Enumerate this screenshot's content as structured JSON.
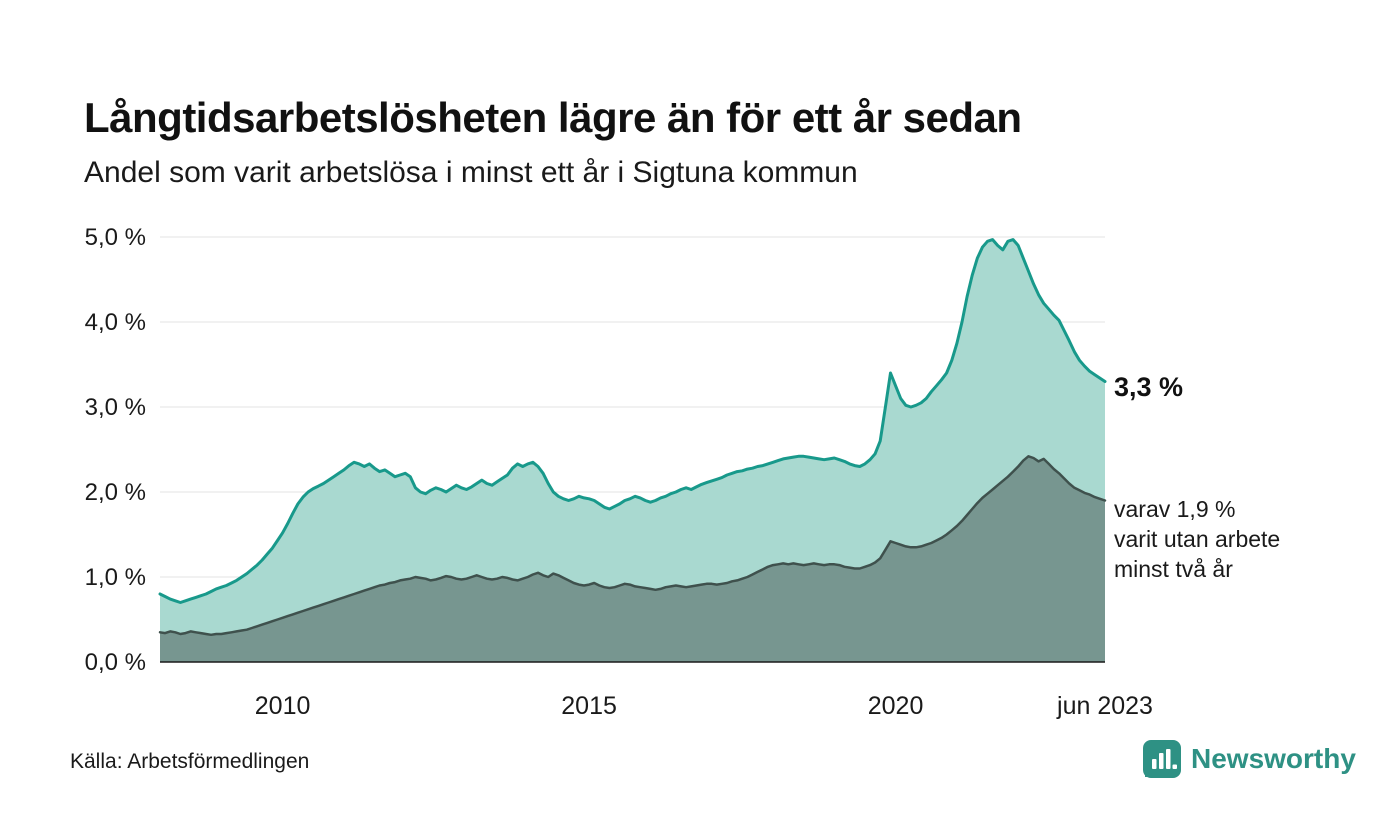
{
  "header": {
    "title": "Långtidsarbetslösheten lägre än för ett år sedan",
    "subtitle": "Andel som varit arbetslösa i minst ett år i Sigtuna kommun"
  },
  "annotations": {
    "latest_value": "3,3 %",
    "secondary": "varav 1,9 %\nvarit utan arbete\nminst två år"
  },
  "footer": {
    "source": "Källa: Arbetsförmedlingen",
    "brand": "Newsworthy"
  },
  "colors": {
    "line_primary": "#18998b",
    "fill_primary": "#a9d9d0",
    "line_secondary": "#3f514d",
    "fill_secondary": "#779690",
    "grid": "#e3e3e3",
    "axis": "#1a1a1a",
    "text": "#1a1a1a",
    "brand_teal": "#2e9184"
  },
  "chart_data": {
    "type": "area",
    "title": "Långtidsarbetslösheten lägre än för ett år sedan",
    "subtitle": "Andel som varit arbetslösa i minst ett år i Sigtuna kommun",
    "x_start": "2008-01",
    "x_interval": "month",
    "ylim": [
      0,
      5
    ],
    "grid": true,
    "legend_position": "none",
    "yticks": [
      {
        "value": 0,
        "label": "0,0 %"
      },
      {
        "value": 1,
        "label": "1,0 %"
      },
      {
        "value": 2,
        "label": "2,0 %"
      },
      {
        "value": 3,
        "label": "3,0 %"
      },
      {
        "value": 4,
        "label": "4,0 %"
      },
      {
        "value": 5,
        "label": "5,0 %"
      }
    ],
    "xticks": [
      {
        "date": "2010-01",
        "label": "2010"
      },
      {
        "date": "2015-01",
        "label": "2015"
      },
      {
        "date": "2020-01",
        "label": "2020"
      },
      {
        "date": "2023-06",
        "label": "jun 2023"
      }
    ],
    "latest": {
      "minst_ett_ar": 3.3,
      "minst_tva_ar": 1.9
    },
    "series": [
      {
        "name": "Arbetslösa minst ett år",
        "color": "#18998b",
        "fill": "#a9d9d0",
        "values": [
          0.8,
          0.77,
          0.74,
          0.72,
          0.7,
          0.72,
          0.74,
          0.76,
          0.78,
          0.8,
          0.83,
          0.86,
          0.88,
          0.9,
          0.93,
          0.96,
          1.0,
          1.04,
          1.09,
          1.14,
          1.2,
          1.27,
          1.34,
          1.43,
          1.52,
          1.63,
          1.75,
          1.86,
          1.94,
          2.0,
          2.04,
          2.07,
          2.1,
          2.14,
          2.18,
          2.22,
          2.26,
          2.31,
          2.35,
          2.33,
          2.3,
          2.33,
          2.28,
          2.24,
          2.26,
          2.22,
          2.18,
          2.2,
          2.22,
          2.18,
          2.05,
          2.0,
          1.98,
          2.02,
          2.05,
          2.03,
          2.0,
          2.04,
          2.08,
          2.05,
          2.03,
          2.06,
          2.1,
          2.14,
          2.1,
          2.08,
          2.12,
          2.16,
          2.2,
          2.28,
          2.33,
          2.3,
          2.33,
          2.35,
          2.3,
          2.22,
          2.1,
          2.0,
          1.95,
          1.92,
          1.9,
          1.92,
          1.95,
          1.93,
          1.92,
          1.9,
          1.86,
          1.82,
          1.8,
          1.83,
          1.86,
          1.9,
          1.92,
          1.95,
          1.93,
          1.9,
          1.88,
          1.9,
          1.93,
          1.95,
          1.98,
          2.0,
          2.03,
          2.05,
          2.03,
          2.06,
          2.09,
          2.11,
          2.13,
          2.15,
          2.17,
          2.2,
          2.22,
          2.24,
          2.25,
          2.27,
          2.28,
          2.3,
          2.31,
          2.33,
          2.35,
          2.37,
          2.39,
          2.4,
          2.41,
          2.42,
          2.42,
          2.41,
          2.4,
          2.39,
          2.38,
          2.39,
          2.4,
          2.38,
          2.36,
          2.33,
          2.31,
          2.3,
          2.33,
          2.38,
          2.45,
          2.6,
          3.0,
          3.4,
          3.25,
          3.1,
          3.02,
          3.0,
          3.02,
          3.05,
          3.1,
          3.18,
          3.25,
          3.32,
          3.4,
          3.55,
          3.75,
          4.0,
          4.3,
          4.55,
          4.75,
          4.88,
          4.95,
          4.97,
          4.9,
          4.85,
          4.95,
          4.97,
          4.9,
          4.75,
          4.6,
          4.45,
          4.32,
          4.22,
          4.15,
          4.08,
          4.02,
          3.9,
          3.78,
          3.65,
          3.55,
          3.48,
          3.42,
          3.38,
          3.34,
          3.3
        ]
      },
      {
        "name": "Arbetslösa minst två år",
        "color": "#3f514d",
        "fill": "#779690",
        "values": [
          0.35,
          0.34,
          0.36,
          0.35,
          0.33,
          0.34,
          0.36,
          0.35,
          0.34,
          0.33,
          0.32,
          0.33,
          0.33,
          0.34,
          0.35,
          0.36,
          0.37,
          0.38,
          0.4,
          0.42,
          0.44,
          0.46,
          0.48,
          0.5,
          0.52,
          0.54,
          0.56,
          0.58,
          0.6,
          0.62,
          0.64,
          0.66,
          0.68,
          0.7,
          0.72,
          0.74,
          0.76,
          0.78,
          0.8,
          0.82,
          0.84,
          0.86,
          0.88,
          0.9,
          0.91,
          0.93,
          0.94,
          0.96,
          0.97,
          0.98,
          1.0,
          0.99,
          0.98,
          0.96,
          0.97,
          0.99,
          1.01,
          1.0,
          0.98,
          0.97,
          0.98,
          1.0,
          1.02,
          1.0,
          0.98,
          0.97,
          0.98,
          1.0,
          0.99,
          0.97,
          0.96,
          0.98,
          1.0,
          1.03,
          1.05,
          1.02,
          1.0,
          1.04,
          1.02,
          0.99,
          0.96,
          0.93,
          0.91,
          0.9,
          0.91,
          0.93,
          0.9,
          0.88,
          0.87,
          0.88,
          0.9,
          0.92,
          0.91,
          0.89,
          0.88,
          0.87,
          0.86,
          0.85,
          0.86,
          0.88,
          0.89,
          0.9,
          0.89,
          0.88,
          0.89,
          0.9,
          0.91,
          0.92,
          0.92,
          0.91,
          0.92,
          0.93,
          0.95,
          0.96,
          0.98,
          1.0,
          1.03,
          1.06,
          1.09,
          1.12,
          1.14,
          1.15,
          1.16,
          1.15,
          1.16,
          1.15,
          1.14,
          1.15,
          1.16,
          1.15,
          1.14,
          1.15,
          1.15,
          1.14,
          1.12,
          1.11,
          1.1,
          1.1,
          1.12,
          1.14,
          1.17,
          1.22,
          1.32,
          1.42,
          1.4,
          1.38,
          1.36,
          1.35,
          1.35,
          1.36,
          1.38,
          1.4,
          1.43,
          1.46,
          1.5,
          1.55,
          1.6,
          1.66,
          1.73,
          1.8,
          1.87,
          1.93,
          1.98,
          2.03,
          2.08,
          2.13,
          2.18,
          2.24,
          2.3,
          2.37,
          2.42,
          2.4,
          2.36,
          2.39,
          2.33,
          2.27,
          2.22,
          2.16,
          2.1,
          2.05,
          2.02,
          1.99,
          1.97,
          1.94,
          1.92,
          1.9
        ]
      }
    ]
  }
}
